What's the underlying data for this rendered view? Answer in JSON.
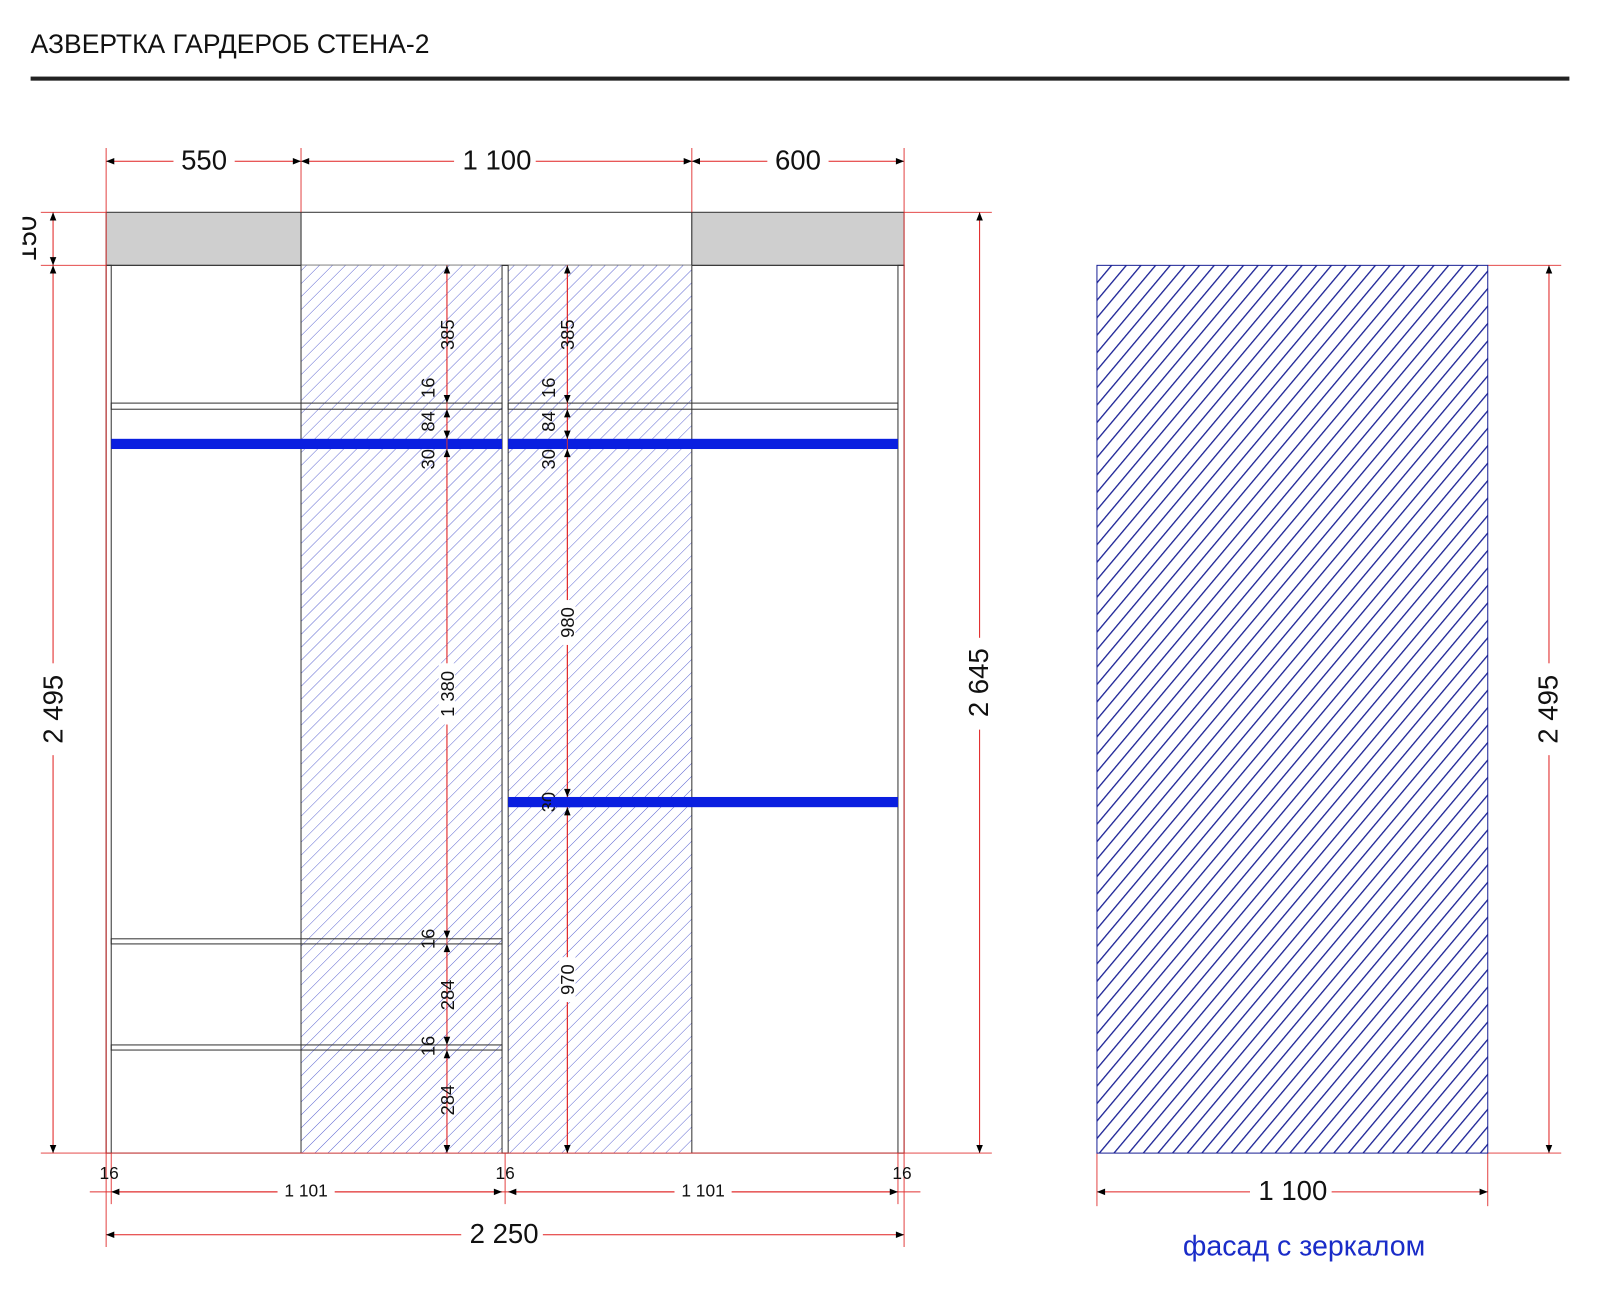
{
  "header": {
    "title": "АЗВЕРТКА ГАРДЕРОБ СТЕНА-2"
  },
  "dimensions": {
    "top": [
      "550",
      "1 100",
      "600"
    ],
    "left": [
      "150",
      "2 495"
    ],
    "right": "2 645",
    "bottom": {
      "edges": [
        "16",
        "16",
        "16"
      ],
      "sections": [
        "1 101",
        "1 101"
      ],
      "total": "2 250"
    },
    "section_1": [
      "385",
      "16",
      "84",
      "30",
      "1 380",
      "16",
      "284",
      "16",
      "284"
    ],
    "section_2": [
      "385",
      "16",
      "84",
      "30",
      "980",
      "30",
      "970"
    ]
  },
  "facade": {
    "height": "2 495",
    "width": "1 100",
    "caption": "фасад с зеркалом"
  }
}
